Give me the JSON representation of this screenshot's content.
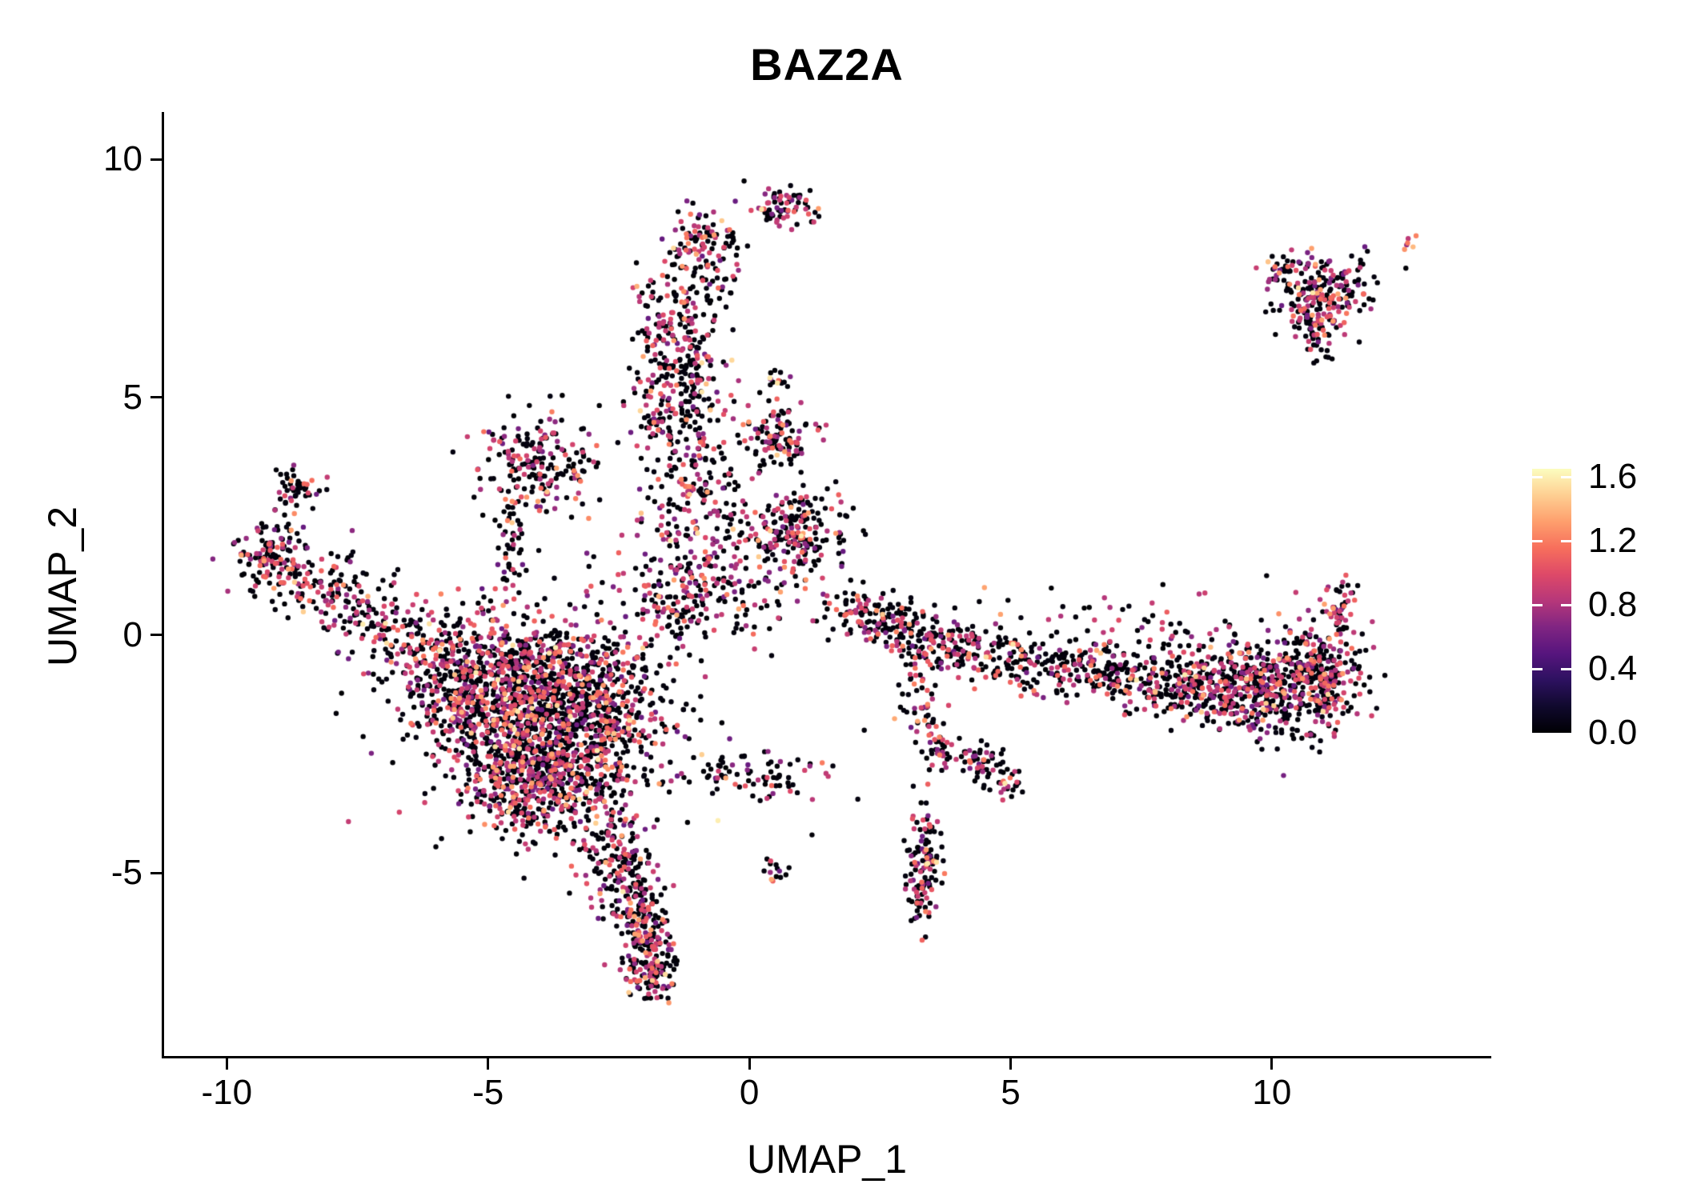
{
  "figure": {
    "background": "#ffffff"
  },
  "chart_data": {
    "type": "scatter",
    "title": "BAZ2A",
    "xlabel": "UMAP_1",
    "ylabel": "UMAP_2",
    "xlim": [
      -11.2,
      14.2
    ],
    "ylim": [
      -8.9,
      11.0
    ],
    "x_ticks": [
      -10,
      -5,
      0,
      5,
      10
    ],
    "x_tick_labels": [
      "-10",
      "-5",
      "0",
      "5",
      "10"
    ],
    "y_ticks": [
      -5,
      0,
      5,
      10
    ],
    "y_tick_labels": [
      "-5",
      "0",
      "5",
      "10"
    ],
    "grid": false,
    "legend_position": "right",
    "point_radius": 3.2,
    "seed": 42,
    "colorbar": {
      "min": 0.0,
      "max": 1.65,
      "ticks": [
        0.0,
        0.4,
        0.8,
        1.2,
        1.6
      ],
      "tick_labels": [
        "0.0",
        "0.4",
        "0.8",
        "1.2",
        "1.6"
      ],
      "colormap": "magma",
      "stops": [
        [
          0.0,
          "#000004"
        ],
        [
          0.1,
          "#10092d"
        ],
        [
          0.2,
          "#2d1160"
        ],
        [
          0.3,
          "#57157e"
        ],
        [
          0.4,
          "#802582"
        ],
        [
          0.5,
          "#b6377a"
        ],
        [
          0.6,
          "#de4968"
        ],
        [
          0.7,
          "#f76f5c"
        ],
        [
          0.8,
          "#fe9f6d"
        ],
        [
          0.9,
          "#fecf92"
        ],
        [
          1.0,
          "#fcfdbf"
        ]
      ]
    },
    "expression_mix": [
      [
        0.58,
        0.0,
        0.05
      ],
      [
        0.2,
        0.55,
        0.95
      ],
      [
        0.14,
        0.8,
        1.15
      ],
      [
        0.06,
        1.05,
        1.35
      ],
      [
        0.02,
        1.3,
        1.6
      ]
    ],
    "expression_mix_hot": [
      [
        0.2,
        0.6,
        0.9
      ],
      [
        0.5,
        1.0,
        1.3
      ],
      [
        0.3,
        1.2,
        1.5
      ]
    ],
    "clusters": [
      {
        "x": 0.65,
        "y": 9.0,
        "sx": 0.28,
        "sy": 0.22,
        "n": 70
      },
      {
        "x": -0.9,
        "y": 8.35,
        "sx": 0.3,
        "sy": 0.28,
        "n": 80
      },
      {
        "x": -1.45,
        "y": 6.3,
        "sx": 0.42,
        "sy": 0.75,
        "n": 190
      },
      {
        "x": -1.3,
        "y": 4.8,
        "sx": 0.5,
        "sy": 0.6,
        "n": 170
      },
      {
        "x": -0.7,
        "y": 7.6,
        "sx": 0.3,
        "sy": 0.4,
        "n": 40
      },
      {
        "x": -1.1,
        "y": 3.4,
        "sx": 0.4,
        "sy": 0.4,
        "n": 60
      },
      {
        "x": 0.55,
        "y": 5.4,
        "sx": 0.12,
        "sy": 0.12,
        "n": 14
      },
      {
        "x": 0.55,
        "y": 4.15,
        "sx": 0.35,
        "sy": 0.35,
        "n": 110
      },
      {
        "x": 0.8,
        "y": 2.1,
        "sx": 0.5,
        "sy": 0.45,
        "n": 220
      },
      {
        "x": -0.9,
        "y": 2.1,
        "sx": 0.6,
        "sy": 0.7,
        "n": 150
      },
      {
        "x": -0.5,
        "y": 0.9,
        "sx": 0.5,
        "sy": 0.4,
        "n": 80
      },
      {
        "x": -4.0,
        "y": 3.6,
        "sx": 0.55,
        "sy": 0.5,
        "n": 190
      },
      {
        "x": -4.55,
        "y": 2.0,
        "sx": 0.15,
        "sy": 0.8,
        "n": 55
      },
      {
        "x": -8.7,
        "y": 3.0,
        "sx": 0.25,
        "sy": 0.25,
        "n": 50
      },
      {
        "x": -9.15,
        "y": 1.7,
        "sx": 0.35,
        "sy": 0.4,
        "n": 120
      },
      {
        "x": -8.2,
        "y": 1.0,
        "sx": 0.5,
        "sy": 0.35,
        "n": 100
      },
      {
        "x": -7.2,
        "y": 0.3,
        "sx": 0.5,
        "sy": 0.35,
        "n": 90
      },
      {
        "x": -6.3,
        "y": -0.3,
        "sx": 0.5,
        "sy": 0.4,
        "n": 90
      },
      {
        "x": -4.8,
        "y": -0.7,
        "sx": 0.8,
        "sy": 0.6,
        "n": 350
      },
      {
        "x": -3.6,
        "y": -1.0,
        "sx": 0.8,
        "sy": 0.6,
        "n": 350
      },
      {
        "x": -4.6,
        "y": -2.2,
        "sx": 0.7,
        "sy": 0.7,
        "n": 400
      },
      {
        "x": -3.4,
        "y": -2.4,
        "sx": 0.7,
        "sy": 0.7,
        "n": 350
      },
      {
        "x": -4.0,
        "y": -3.4,
        "sx": 0.6,
        "sy": 0.5,
        "n": 250
      },
      {
        "x": -2.6,
        "y": -1.6,
        "sx": 0.5,
        "sy": 0.8,
        "n": 200
      },
      {
        "x": -5.6,
        "y": -1.4,
        "sx": 0.5,
        "sy": 0.5,
        "n": 150
      },
      {
        "x": -4.0,
        "y": -1.6,
        "sx": 1.5,
        "sy": 1.3,
        "n": 250
      },
      {
        "x": -2.6,
        "y": -4.6,
        "sx": 0.35,
        "sy": 0.5,
        "n": 120
      },
      {
        "x": -2.2,
        "y": -5.6,
        "sx": 0.3,
        "sy": 0.5,
        "n": 120
      },
      {
        "x": -1.9,
        "y": -6.5,
        "sx": 0.28,
        "sy": 0.45,
        "n": 130
      },
      {
        "x": -1.85,
        "y": -7.2,
        "sx": 0.22,
        "sy": 0.25,
        "n": 60
      },
      {
        "x": -1.6,
        "y": 0.7,
        "sx": 0.7,
        "sy": 0.6,
        "n": 120
      },
      {
        "x": 0.0,
        "y": -2.9,
        "sx": 0.8,
        "sy": 0.28,
        "n": 85
      },
      {
        "x": 0.45,
        "y": -4.95,
        "sx": 0.15,
        "sy": 0.15,
        "n": 14
      },
      {
        "x": 2.0,
        "y": 0.55,
        "sx": 0.3,
        "sy": 0.25,
        "n": 60
      },
      {
        "x": 2.6,
        "y": 0.3,
        "sx": 0.35,
        "sy": 0.25,
        "n": 70
      },
      {
        "x": 3.3,
        "y": -0.1,
        "sx": 0.4,
        "sy": 0.3,
        "n": 90
      },
      {
        "x": 4.0,
        "y": -0.35,
        "sx": 0.4,
        "sy": 0.25,
        "n": 70
      },
      {
        "x": 4.9,
        "y": -0.5,
        "sx": 0.4,
        "sy": 0.3,
        "n": 60
      },
      {
        "x": 5.7,
        "y": -0.7,
        "sx": 0.5,
        "sy": 0.3,
        "n": 70
      },
      {
        "x": 6.6,
        "y": -0.8,
        "sx": 0.5,
        "sy": 0.3,
        "n": 80
      },
      {
        "x": 7.5,
        "y": -0.9,
        "sx": 0.5,
        "sy": 0.35,
        "n": 100
      },
      {
        "x": 8.4,
        "y": -1.0,
        "sx": 0.5,
        "sy": 0.4,
        "n": 150
      },
      {
        "x": 9.3,
        "y": -1.1,
        "sx": 0.5,
        "sy": 0.45,
        "n": 200
      },
      {
        "x": 10.2,
        "y": -1.1,
        "sx": 0.5,
        "sy": 0.5,
        "n": 250
      },
      {
        "x": 11.0,
        "y": -0.9,
        "sx": 0.4,
        "sy": 0.6,
        "n": 250
      },
      {
        "x": 11.3,
        "y": 0.5,
        "sx": 0.15,
        "sy": 0.35,
        "n": 45
      },
      {
        "x": 7.5,
        "y": 0.25,
        "sx": 1.3,
        "sy": 0.35,
        "n": 60
      },
      {
        "x": 3.2,
        "y": -1.6,
        "sx": 0.25,
        "sy": 0.6,
        "n": 55
      },
      {
        "x": 3.6,
        "y": -2.4,
        "sx": 0.15,
        "sy": 0.2,
        "n": 25
      },
      {
        "x": 4.5,
        "y": -2.65,
        "sx": 0.25,
        "sy": 0.25,
        "n": 55
      },
      {
        "x": 5.0,
        "y": -3.05,
        "sx": 0.2,
        "sy": 0.2,
        "n": 25
      },
      {
        "x": 3.35,
        "y": -4.9,
        "sx": 0.18,
        "sy": 0.55,
        "n": 130
      },
      {
        "x": 10.3,
        "y": 7.75,
        "sx": 0.22,
        "sy": 0.15,
        "n": 30
      },
      {
        "x": 11.0,
        "y": 7.3,
        "sx": 0.45,
        "sy": 0.35,
        "n": 180
      },
      {
        "x": 10.9,
        "y": 6.5,
        "sx": 0.28,
        "sy": 0.3,
        "n": 80
      },
      {
        "x": 12.6,
        "y": 8.3,
        "sx": 0.1,
        "sy": 0.08,
        "n": 6,
        "hot": true
      }
    ],
    "singles": [
      [
        -6.8,
        1.1
      ],
      [
        1.4,
        1.2
      ],
      [
        1.2,
        -4.2
      ],
      [
        -0.6,
        -3.9
      ],
      [
        9.9,
        1.25
      ],
      [
        4.5,
        1.0
      ],
      [
        0.2,
        5.1
      ],
      [
        -7.6,
        2.2
      ],
      [
        -0.1,
        9.55
      ],
      [
        2.2,
        -2.0
      ],
      [
        6.0,
        0.6
      ],
      [
        1.6,
        -2.75
      ]
    ]
  }
}
